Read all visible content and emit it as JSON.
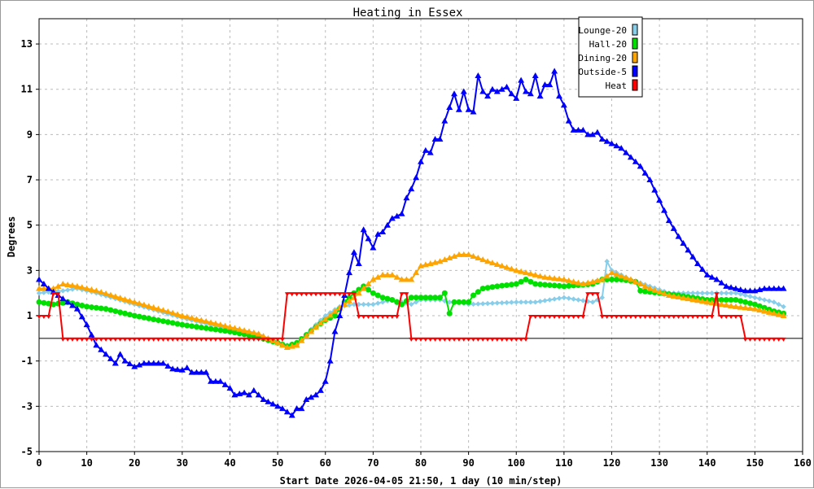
{
  "chart_data": {
    "type": "line",
    "title": "Heating in Essex",
    "xlabel": "Start Date 2026-04-05 21:50, 1 day (10 min/step)",
    "ylabel": "Degrees",
    "xlim": [
      0,
      160
    ],
    "ylim": [
      -5,
      14
    ],
    "xticks": [
      0,
      10,
      20,
      30,
      40,
      50,
      60,
      70,
      80,
      90,
      100,
      110,
      120,
      130,
      140,
      150,
      160
    ],
    "yticks": [
      -5,
      -3,
      -1,
      1,
      3,
      5,
      7,
      9,
      11,
      13
    ],
    "grid": true,
    "legend_position": "top-right",
    "x_last": 156,
    "series": [
      {
        "name": "Lounge-20",
        "color": "#87ceeb",
        "marker": "diamond",
        "points": [
          [
            0,
            2.0
          ],
          [
            5,
            2.1
          ],
          [
            8,
            2.2
          ],
          [
            12,
            2.0
          ],
          [
            20,
            1.5
          ],
          [
            30,
            0.9
          ],
          [
            40,
            0.4
          ],
          [
            48,
            0.0
          ],
          [
            52,
            -0.3
          ],
          [
            54,
            -0.3
          ],
          [
            57,
            0.4
          ],
          [
            60,
            1.0
          ],
          [
            63,
            1.4
          ],
          [
            66,
            1.5
          ],
          [
            70,
            1.5
          ],
          [
            74,
            1.7
          ],
          [
            76,
            1.6
          ],
          [
            78,
            1.5
          ],
          [
            80,
            1.7
          ],
          [
            84,
            1.7
          ],
          [
            86,
            1.6
          ],
          [
            88,
            1.6
          ],
          [
            90,
            1.5
          ],
          [
            100,
            1.6
          ],
          [
            104,
            1.6
          ],
          [
            110,
            1.8
          ],
          [
            116,
            1.6
          ],
          [
            118,
            1.8
          ],
          [
            119,
            3.4
          ],
          [
            120,
            3.0
          ],
          [
            124,
            2.6
          ],
          [
            128,
            2.3
          ],
          [
            132,
            2.0
          ],
          [
            136,
            2.0
          ],
          [
            140,
            2.0
          ],
          [
            146,
            2.0
          ],
          [
            150,
            1.8
          ],
          [
            154,
            1.6
          ],
          [
            156,
            1.4
          ]
        ]
      },
      {
        "name": "Hall-20",
        "color": "#00e000",
        "marker": "circle",
        "points": [
          [
            0,
            1.6
          ],
          [
            3,
            1.5
          ],
          [
            6,
            1.6
          ],
          [
            10,
            1.4
          ],
          [
            14,
            1.3
          ],
          [
            20,
            1.0
          ],
          [
            30,
            0.6
          ],
          [
            40,
            0.3
          ],
          [
            45,
            0.1
          ],
          [
            50,
            -0.2
          ],
          [
            52,
            -0.35
          ],
          [
            54,
            -0.2
          ],
          [
            58,
            0.5
          ],
          [
            60,
            0.8
          ],
          [
            62,
            1.0
          ],
          [
            64,
            1.6
          ],
          [
            66,
            2.0
          ],
          [
            68,
            2.3
          ],
          [
            70,
            2.0
          ],
          [
            72,
            1.8
          ],
          [
            74,
            1.7
          ],
          [
            76,
            1.5
          ],
          [
            78,
            1.8
          ],
          [
            84,
            1.8
          ],
          [
            85,
            2.0
          ],
          [
            86,
            1.1
          ],
          [
            87,
            1.6
          ],
          [
            90,
            1.6
          ],
          [
            91,
            1.9
          ],
          [
            93,
            2.2
          ],
          [
            96,
            2.3
          ],
          [
            100,
            2.4
          ],
          [
            102,
            2.6
          ],
          [
            104,
            2.4
          ],
          [
            110,
            2.3
          ],
          [
            116,
            2.4
          ],
          [
            118,
            2.6
          ],
          [
            122,
            2.6
          ],
          [
            125,
            2.5
          ],
          [
            126,
            2.1
          ],
          [
            130,
            2.0
          ],
          [
            134,
            1.9
          ],
          [
            140,
            1.7
          ],
          [
            146,
            1.7
          ],
          [
            150,
            1.5
          ],
          [
            154,
            1.2
          ],
          [
            156,
            1.1
          ]
        ]
      },
      {
        "name": "Dining-20",
        "color": "#ffa500",
        "marker": "triangle-up",
        "points": [
          [
            0,
            2.2
          ],
          [
            3,
            2.2
          ],
          [
            5,
            2.4
          ],
          [
            8,
            2.3
          ],
          [
            12,
            2.1
          ],
          [
            20,
            1.6
          ],
          [
            30,
            1.0
          ],
          [
            40,
            0.5
          ],
          [
            46,
            0.2
          ],
          [
            50,
            -0.2
          ],
          [
            52,
            -0.4
          ],
          [
            54,
            -0.3
          ],
          [
            58,
            0.5
          ],
          [
            62,
            1.2
          ],
          [
            66,
            1.8
          ],
          [
            70,
            2.6
          ],
          [
            72,
            2.8
          ],
          [
            74,
            2.8
          ],
          [
            76,
            2.6
          ],
          [
            78,
            2.6
          ],
          [
            80,
            3.2
          ],
          [
            84,
            3.4
          ],
          [
            88,
            3.7
          ],
          [
            90,
            3.7
          ],
          [
            94,
            3.4
          ],
          [
            100,
            3.0
          ],
          [
            106,
            2.7
          ],
          [
            110,
            2.6
          ],
          [
            114,
            2.4
          ],
          [
            118,
            2.6
          ],
          [
            120,
            2.9
          ],
          [
            124,
            2.6
          ],
          [
            128,
            2.2
          ],
          [
            132,
            1.9
          ],
          [
            140,
            1.6
          ],
          [
            146,
            1.4
          ],
          [
            150,
            1.3
          ],
          [
            156,
            1.0
          ]
        ]
      },
      {
        "name": "Outside-5",
        "color": "#0000ff",
        "marker": "triangle-up",
        "points": [
          [
            0,
            2.6
          ],
          [
            2,
            2.2
          ],
          [
            4,
            1.9
          ],
          [
            6,
            1.6
          ],
          [
            8,
            1.3
          ],
          [
            10,
            0.6
          ],
          [
            12,
            -0.3
          ],
          [
            14,
            -0.7
          ],
          [
            16,
            -1.1
          ],
          [
            17,
            -0.7
          ],
          [
            18,
            -1.0
          ],
          [
            20,
            -1.25
          ],
          [
            22,
            -1.1
          ],
          [
            26,
            -1.1
          ],
          [
            28,
            -1.35
          ],
          [
            30,
            -1.4
          ],
          [
            31,
            -1.3
          ],
          [
            32,
            -1.5
          ],
          [
            35,
            -1.5
          ],
          [
            36,
            -1.9
          ],
          [
            38,
            -1.9
          ],
          [
            40,
            -2.2
          ],
          [
            41,
            -2.5
          ],
          [
            43,
            -2.4
          ],
          [
            44,
            -2.5
          ],
          [
            45,
            -2.3
          ],
          [
            47,
            -2.7
          ],
          [
            49,
            -2.9
          ],
          [
            51,
            -3.1
          ],
          [
            53,
            -3.4
          ],
          [
            54,
            -3.1
          ],
          [
            55,
            -3.1
          ],
          [
            56,
            -2.7
          ],
          [
            58,
            -2.5
          ],
          [
            59,
            -2.3
          ],
          [
            60,
            -1.9
          ],
          [
            61,
            -1.0
          ],
          [
            62,
            0.3
          ],
          [
            63,
            1.0
          ],
          [
            64,
            1.9
          ],
          [
            65,
            2.9
          ],
          [
            66,
            3.8
          ],
          [
            67,
            3.3
          ],
          [
            68,
            4.8
          ],
          [
            69,
            4.4
          ],
          [
            70,
            4.0
          ],
          [
            71,
            4.6
          ],
          [
            72,
            4.7
          ],
          [
            73,
            5.0
          ],
          [
            74,
            5.3
          ],
          [
            75,
            5.4
          ],
          [
            76,
            5.5
          ],
          [
            77,
            6.2
          ],
          [
            78,
            6.6
          ],
          [
            79,
            7.1
          ],
          [
            80,
            7.8
          ],
          [
            81,
            8.3
          ],
          [
            82,
            8.2
          ],
          [
            83,
            8.8
          ],
          [
            84,
            8.8
          ],
          [
            85,
            9.6
          ],
          [
            86,
            10.2
          ],
          [
            87,
            10.8
          ],
          [
            88,
            10.1
          ],
          [
            89,
            10.9
          ],
          [
            90,
            10.1
          ],
          [
            91,
            10.0
          ],
          [
            92,
            11.6
          ],
          [
            93,
            10.9
          ],
          [
            94,
            10.7
          ],
          [
            95,
            11.0
          ],
          [
            96,
            10.9
          ],
          [
            98,
            11.1
          ],
          [
            99,
            10.8
          ],
          [
            100,
            10.6
          ],
          [
            101,
            11.4
          ],
          [
            102,
            10.9
          ],
          [
            103,
            10.8
          ],
          [
            104,
            11.6
          ],
          [
            105,
            10.7
          ],
          [
            106,
            11.2
          ],
          [
            107,
            11.2
          ],
          [
            108,
            11.8
          ],
          [
            109,
            10.7
          ],
          [
            110,
            10.3
          ],
          [
            111,
            9.6
          ],
          [
            112,
            9.2
          ],
          [
            114,
            9.2
          ],
          [
            115,
            9.0
          ],
          [
            116,
            9.0
          ],
          [
            117,
            9.1
          ],
          [
            118,
            8.8
          ],
          [
            120,
            8.6
          ],
          [
            122,
            8.4
          ],
          [
            124,
            8.0
          ],
          [
            126,
            7.6
          ],
          [
            128,
            7.0
          ],
          [
            130,
            6.1
          ],
          [
            132,
            5.2
          ],
          [
            134,
            4.5
          ],
          [
            136,
            3.9
          ],
          [
            138,
            3.3
          ],
          [
            140,
            2.8
          ],
          [
            142,
            2.6
          ],
          [
            144,
            2.3
          ],
          [
            146,
            2.2
          ],
          [
            148,
            2.1
          ],
          [
            150,
            2.1
          ],
          [
            152,
            2.2
          ],
          [
            156,
            2.2
          ]
        ]
      },
      {
        "name": "Heat",
        "color": "#ff0000",
        "marker": "triangle-down",
        "points": [
          [
            0,
            1
          ],
          [
            2,
            1
          ],
          [
            3,
            2
          ],
          [
            4,
            2
          ],
          [
            5,
            0
          ],
          [
            51,
            0
          ],
          [
            52,
            2
          ],
          [
            66,
            2
          ],
          [
            67,
            1
          ],
          [
            75,
            1
          ],
          [
            76,
            2
          ],
          [
            77,
            2
          ],
          [
            78,
            0
          ],
          [
            102,
            0
          ],
          [
            103,
            1
          ],
          [
            114,
            1
          ],
          [
            115,
            2
          ],
          [
            117,
            2
          ],
          [
            118,
            1
          ],
          [
            141,
            1
          ],
          [
            142,
            2
          ],
          [
            142.5,
            1
          ],
          [
            147,
            1
          ],
          [
            148,
            0
          ],
          [
            156,
            0
          ]
        ]
      }
    ]
  }
}
